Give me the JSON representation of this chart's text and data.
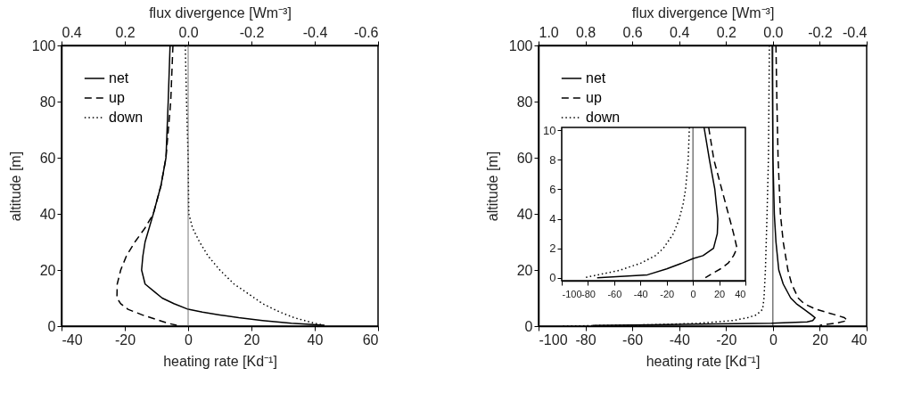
{
  "chart_data": [
    {
      "type": "line",
      "xlabel": "heating rate [Kd⁻¹]",
      "ylabel": "altitude [m]",
      "x2label": "flux divergence [Wm⁻³]",
      "xlim": [
        -40,
        60
      ],
      "xticks": [
        -40,
        -20,
        0,
        20,
        40,
        60
      ],
      "x2lim": [
        0.4,
        -0.6
      ],
      "x2ticks": [
        0.4,
        0.2,
        {
          "value": 0,
          "label": "0.0"
        },
        -0.2,
        -0.4,
        -0.6
      ],
      "ylim": [
        0,
        100
      ],
      "yticks": [
        0,
        20,
        40,
        60,
        80,
        100
      ],
      "grid": false,
      "legend": "top left",
      "ref_lines": [
        {
          "axis": "x",
          "value": 0,
          "color": "#555555"
        }
      ],
      "series": [
        {
          "name": "net",
          "color": "#000000",
          "line_style": "solid",
          "x": [
            -5.7,
            -6.3,
            -7,
            -8.6,
            -11,
            -13.6,
            -14.3,
            -14.7,
            -13.6,
            -10.4,
            -8.2,
            -4.5,
            0,
            4.5,
            10,
            16,
            23.5,
            32.6,
            43
          ],
          "values": [
            100,
            80,
            60,
            50,
            40,
            30,
            25,
            20,
            15,
            12,
            10,
            8,
            6,
            5,
            4,
            3,
            2,
            1,
            0.3
          ]
        },
        {
          "name": "up",
          "color": "#000000",
          "line_style": "dashed",
          "x": [
            -4.8,
            -5.5,
            -7,
            -8.6,
            -11,
            -13.6,
            -16.8,
            -19.5,
            -21.3,
            -22.4,
            -22.5,
            -21.3,
            -19,
            -14.5,
            -9,
            -6.3,
            -3.6
          ],
          "values": [
            100,
            80,
            60,
            50,
            40,
            35,
            30,
            25,
            20,
            15,
            10,
            8,
            6,
            4,
            2,
            1,
            0.3
          ]
        },
        {
          "name": "down",
          "color": "#000000",
          "line_style": "dotted",
          "x": [
            -0.9,
            -0.5,
            0,
            0.2,
            1.4,
            3.6,
            6.3,
            10,
            14.5,
            21,
            23.5,
            29,
            33.5,
            40,
            43
          ],
          "values": [
            100,
            80,
            60,
            40,
            35,
            30,
            25,
            20,
            15,
            10,
            8,
            5,
            3,
            1,
            0.3
          ]
        }
      ]
    },
    {
      "type": "line",
      "xlabel": "heating rate [Kd⁻¹]",
      "ylabel": "altitude [m]",
      "x2label": "flux divergence [Wm⁻³]",
      "xlim": [
        -100,
        40
      ],
      "xticks": [
        -100,
        -80,
        -60,
        -40,
        -20,
        0,
        20,
        40
      ],
      "x2lim": [
        1,
        -0.4
      ],
      "x2ticks": [
        {
          "value": 1,
          "label": "1.0"
        },
        0.8,
        0.6,
        0.4,
        0.2,
        {
          "value": 0,
          "label": "0.0"
        },
        -0.2,
        -0.4
      ],
      "ylim": [
        0,
        100
      ],
      "yticks": [
        0,
        20,
        40,
        60,
        80,
        100
      ],
      "grid": false,
      "legend": "top left",
      "ref_lines": [
        {
          "axis": "x",
          "value": 0,
          "color": "#000000"
        }
      ],
      "series": [
        {
          "name": "net",
          "color": "#000000",
          "line_style": "solid",
          "x": [
            -0.3,
            0,
            0.6,
            1.3,
            2.5,
            4.4,
            7.6,
            10,
            13.3,
            16.5,
            18,
            17,
            14.6,
            -0.6,
            -51,
            -77
          ],
          "values": [
            100,
            60,
            40,
            30,
            20,
            15,
            10,
            8,
            6,
            4,
            3,
            2,
            1.5,
            1,
            0.5,
            0.2
          ]
        },
        {
          "name": "up",
          "color": "#000000",
          "line_style": "dashed",
          "x": [
            1.3,
            1.7,
            2.2,
            3.2,
            4.4,
            6.4,
            8,
            10.8,
            13.3,
            18.4,
            26.7,
            30.5,
            31.8,
            26.7,
            20
          ],
          "values": [
            100,
            80,
            60,
            40,
            30,
            20,
            15,
            10,
            8,
            6,
            4,
            3,
            2,
            1,
            0.3
          ]
        },
        {
          "name": "down",
          "color": "#000000",
          "line_style": "dotted",
          "x": [
            -1.5,
            -1.9,
            -2.5,
            -3.2,
            -3.8,
            -4.4,
            -7,
            -10.8,
            -17,
            -32,
            -51,
            -90
          ],
          "values": [
            100,
            60,
            40,
            20,
            10,
            6,
            4,
            3,
            2,
            1,
            0.5,
            0
          ]
        }
      ]
    },
    {
      "type": "line",
      "xlim": [
        -100,
        40
      ],
      "xticks": [
        -100,
        -80,
        -60,
        -40,
        -20,
        0,
        20,
        40
      ],
      "ylim": [
        -0.2,
        10.2
      ],
      "yticks": [
        0,
        2,
        4,
        6,
        8,
        10
      ],
      "grid": false,
      "ref_lines": [
        {
          "axis": "x",
          "value": 0,
          "color": "#000000"
        }
      ],
      "series": [
        {
          "color": "#000000",
          "line_style": "solid",
          "x": [
            8.5,
            12.6,
            16.7,
            19,
            18.6,
            15.7,
            7.7,
            0,
            -8,
            -20,
            -34.6,
            -73
          ],
          "values": [
            10.2,
            8,
            6,
            4,
            3,
            2,
            1.5,
            1.3,
            1,
            0.6,
            0.2,
            0
          ]
        },
        {
          "color": "#000000",
          "line_style": "dashed",
          "x": [
            12,
            16,
            22,
            28,
            31,
            33.6,
            31,
            27,
            21,
            15,
            9.5
          ],
          "values": [
            10.2,
            8,
            6,
            4,
            3,
            2,
            1.5,
            1,
            0.6,
            0.3,
            0
          ]
        },
        {
          "color": "#000000",
          "line_style": "dotted",
          "x": [
            -2.7,
            -3.6,
            -5.6,
            -7.5,
            -10.4,
            -14.8,
            -22.5,
            -28.6,
            -39.5,
            -56,
            -83
          ],
          "values": [
            10.2,
            8,
            6,
            5,
            4,
            3,
            2,
            1.5,
            1,
            0.5,
            0
          ]
        }
      ]
    }
  ]
}
